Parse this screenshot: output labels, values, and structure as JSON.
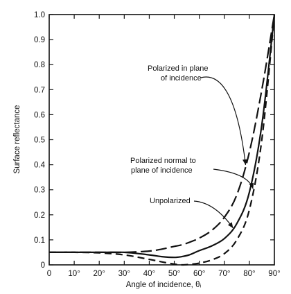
{
  "chart_data": {
    "type": "line",
    "xlabel": "Angle of incidence, θᵢ",
    "ylabel": "Surface reflectance",
    "xlim": [
      0,
      90
    ],
    "ylim": [
      0,
      1.0
    ],
    "x_ticks": [
      "0",
      "10°",
      "20°",
      "30°",
      "40°",
      "50°",
      "60°",
      "70°",
      "80°",
      "90°"
    ],
    "y_ticks": [
      "0",
      "0.1",
      "0.2",
      "0.3",
      "0.4",
      "0.5",
      "0.6",
      "0.7",
      "0.8",
      "0.9",
      "1.0"
    ],
    "grid": false,
    "series": [
      {
        "name": "Polarized in plane of incidence",
        "style": "long-dash",
        "x": [
          0,
          20,
          30,
          40,
          45,
          50,
          53,
          56,
          60,
          65,
          70,
          75,
          80,
          85,
          90
        ],
        "y": [
          0.05,
          0.05,
          0.05,
          0.055,
          0.063,
          0.074,
          0.08,
          0.09,
          0.107,
          0.138,
          0.19,
          0.28,
          0.45,
          0.7,
          1.0
        ]
      },
      {
        "name": "Unpolarized",
        "style": "solid",
        "x": [
          0,
          20,
          30,
          40,
          45,
          50,
          53,
          56,
          60,
          65,
          70,
          75,
          80,
          85,
          90
        ],
        "y": [
          0.05,
          0.05,
          0.05,
          0.04,
          0.033,
          0.03,
          0.033,
          0.04,
          0.057,
          0.076,
          0.105,
          0.165,
          0.29,
          0.56,
          1.0
        ]
      },
      {
        "name": "Polarized normal to plane of incidence",
        "style": "dashed",
        "x": [
          0,
          10,
          20,
          30,
          40,
          45,
          50,
          53,
          56,
          60,
          65,
          70,
          75,
          80,
          85,
          90
        ],
        "y": [
          0.05,
          0.05,
          0.048,
          0.04,
          0.022,
          0.012,
          0.003,
          0.0,
          0.002,
          0.007,
          0.02,
          0.045,
          0.1,
          0.22,
          0.5,
          1.0
        ]
      }
    ],
    "annotations": [
      {
        "text": "Polarized in plane",
        "target_series": 0
      },
      {
        "text": "of incidence",
        "target_series": 0
      },
      {
        "text": "Polarized normal to",
        "target_series": 2
      },
      {
        "text": "plane of incidence",
        "target_series": 2
      },
      {
        "text": "Unpolarized",
        "target_series": 1
      }
    ]
  }
}
